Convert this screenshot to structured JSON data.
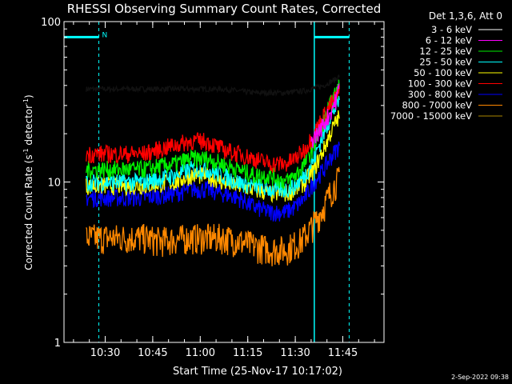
{
  "chart_data": {
    "type": "line",
    "title": "RHESSI Observing Summary Count Rates, Corrected",
    "xlabel": "Start Time (25-Nov-17 10:17:02)",
    "ylabel": "Corrected Count Rate (s",
    "ylabel_sup": "-1",
    "ylabel_mid": " detector",
    "ylabel_sup2": "-1",
    "ylabel_end": ")",
    "y_scale": "log",
    "ylim": [
      1,
      100
    ],
    "y_ticks": [
      {
        "value": 1,
        "label": "1"
      },
      {
        "value": 10,
        "label": "10"
      },
      {
        "value": 100,
        "label": "100"
      }
    ],
    "x_unit": "minutes after 10:17:02",
    "xlim": [
      0,
      101
    ],
    "x_ticks": [
      {
        "value": 13,
        "label": "10:30"
      },
      {
        "value": 28,
        "label": "10:45"
      },
      {
        "value": 43,
        "label": "11:00"
      },
      {
        "value": 58,
        "label": "11:15"
      },
      {
        "value": 73,
        "label": "11:30"
      },
      {
        "value": 88,
        "label": "11:45"
      }
    ],
    "legend_title": "Det 1,3,6, Att 0",
    "legend_position": "right",
    "series": [
      {
        "name": "3 - 6 keV",
        "color": "#000000",
        "x": [
          7,
          20,
          30,
          40,
          50,
          60,
          70,
          76,
          78,
          80,
          82,
          84,
          86,
          87
        ],
        "y": [
          38,
          38,
          38,
          38,
          38,
          36,
          36,
          37,
          38,
          39,
          40,
          42,
          44,
          46
        ]
      },
      {
        "name": "6 - 12 keV",
        "color": "#ff00ff",
        "x": [
          78,
          80,
          82,
          84,
          86,
          87
        ],
        "y": [
          18,
          20,
          23,
          27,
          33,
          40
        ]
      },
      {
        "name": "12 - 25 keV",
        "color": "#00ee00",
        "x": [
          7,
          15,
          25,
          35,
          40,
          45,
          50,
          55,
          60,
          65,
          70,
          73,
          76,
          79,
          82,
          84,
          86,
          87
        ],
        "y": [
          12,
          12,
          12,
          13,
          14,
          14,
          13,
          12,
          11,
          11,
          10,
          11,
          13,
          17,
          24,
          30,
          36,
          40
        ]
      },
      {
        "name": "25 - 50 keV",
        "color": "#00ffff",
        "x": [
          7,
          15,
          25,
          35,
          40,
          45,
          50,
          55,
          60,
          65,
          70,
          73,
          76,
          79,
          82,
          84,
          86,
          87
        ],
        "y": [
          10,
          10,
          10,
          11,
          12,
          12,
          11,
          10,
          9.5,
          9,
          9,
          9.5,
          11,
          14,
          20,
          25,
          30,
          32
        ]
      },
      {
        "name": "50 - 100 keV",
        "color": "#ffff00",
        "x": [
          7,
          15,
          25,
          35,
          40,
          45,
          50,
          55,
          60,
          65,
          70,
          73,
          76,
          79,
          82,
          84,
          86,
          87
        ],
        "y": [
          9.5,
          9.5,
          9.5,
          10,
          11,
          11,
          10,
          9.5,
          9,
          8.5,
          8.5,
          9,
          10,
          12,
          16,
          20,
          24,
          26
        ]
      },
      {
        "name": "100 - 300 keV",
        "color": "#ff0000",
        "x": [
          7,
          15,
          25,
          35,
          40,
          45,
          50,
          55,
          60,
          65,
          70,
          73,
          76,
          79,
          82,
          84,
          86,
          87
        ],
        "y": [
          15,
          15,
          15,
          17,
          18,
          18,
          16,
          15,
          14,
          13,
          13,
          14,
          16,
          20,
          26,
          30,
          34,
          36
        ]
      },
      {
        "name": "300 - 800 keV",
        "color": "#0000ff",
        "x": [
          7,
          15,
          25,
          35,
          40,
          45,
          50,
          55,
          60,
          65,
          70,
          73,
          76,
          79,
          82,
          84,
          86,
          87
        ],
        "y": [
          8,
          8,
          8,
          8.5,
          9,
          9,
          8.5,
          8,
          7,
          6.5,
          6.5,
          7,
          8,
          10,
          12,
          14,
          16,
          17
        ]
      },
      {
        "name": "800 - 7000 keV",
        "color": "#ff8800",
        "x": [
          7,
          15,
          25,
          30,
          40,
          50,
          55,
          60,
          65,
          70,
          75,
          79,
          82,
          84,
          86,
          87
        ],
        "y": [
          4.5,
          4.5,
          4.5,
          4.3,
          4.5,
          4.5,
          4.3,
          4.0,
          3.8,
          3.8,
          4.3,
          5.5,
          7,
          8.5,
          10,
          10.5
        ]
      },
      {
        "name": "7000 - 15000 keV",
        "color": "#aa8800",
        "x": [],
        "y": []
      }
    ],
    "mode_bars": [
      {
        "x_start": 0,
        "x_end": 11,
        "level": 80,
        "color": "#00ffff"
      },
      {
        "x_start": 79,
        "x_end": 90,
        "level": 80,
        "color": "#00ffff"
      }
    ],
    "mode_lines_solid": [
      {
        "x": 79,
        "color": "#00ffff"
      }
    ],
    "mode_lines_dashed": [
      {
        "x": 11,
        "color": "#00ffff"
      },
      {
        "x": 90,
        "color": "#00ffff"
      }
    ],
    "mode_label": {
      "text": "N",
      "x": 12,
      "level": 82
    }
  },
  "timestamp": "2-Sep-2022 09:38"
}
